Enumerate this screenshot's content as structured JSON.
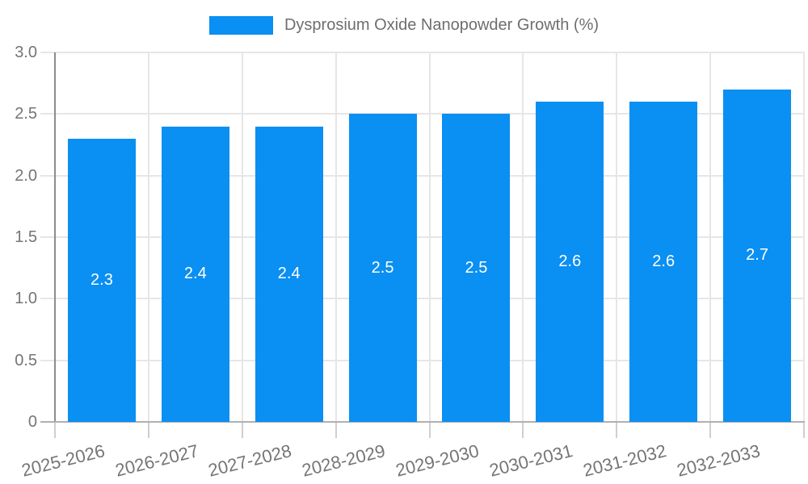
{
  "chart_data": {
    "type": "bar",
    "title": "Dysprosium Oxide Nanopowder Growth (%)",
    "categories": [
      "2025-2026",
      "2026-2027",
      "2027-2028",
      "2028-2029",
      "2029-2030",
      "2030-2031",
      "2031-2032",
      "2032-2033"
    ],
    "values": [
      2.3,
      2.4,
      2.4,
      2.5,
      2.5,
      2.6,
      2.6,
      2.7
    ],
    "bar_labels": [
      "2.3",
      "2.4",
      "2.4",
      "2.5",
      "2.5",
      "2.6",
      "2.6",
      "2.7"
    ],
    "xlabel": "",
    "ylabel": "",
    "ylim": [
      0,
      3
    ],
    "yticks": [
      0,
      0.5,
      1,
      1.5,
      2,
      2.5,
      3
    ],
    "ytick_labels": [
      "0",
      "0.5",
      "1.0",
      "1.5",
      "2.0",
      "2.5",
      "3.0"
    ],
    "grid": true,
    "legend_position": "top",
    "colors": {
      "bar": "#0a8ff2",
      "bar_label_text": "#ffffff",
      "axis_text": "#757575",
      "legend_text": "#6e6e6e",
      "gridline": "#e6e6e6",
      "tick": "#cfcfcf",
      "y_axis_line": "#8c8c8c",
      "x_axis_line": "#b0b0b0",
      "background": "#ffffff"
    }
  }
}
